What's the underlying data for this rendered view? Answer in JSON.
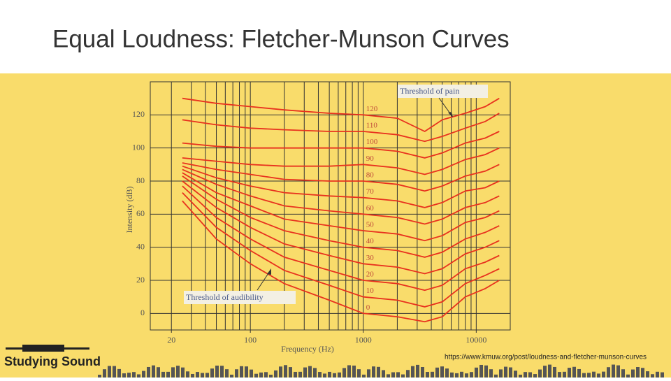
{
  "slide": {
    "title": "Equal Loudness: Fletcher-Munson Curves",
    "source": "https://www.kmuw.org/post/loudness-and-fletcher-munson-curves",
    "logo": "Studying Sound"
  },
  "chart_data": {
    "type": "line",
    "xlabel": "Frequency (Hz)",
    "ylabel": "Intensity (dB)",
    "xscale": "log",
    "xlim": [
      13,
      20000
    ],
    "ylim": [
      -10,
      140
    ],
    "xticks": [
      20,
      100,
      1000,
      10000
    ],
    "yticks": [
      0,
      20,
      40,
      60,
      80,
      100,
      120
    ],
    "xgrid": [
      20,
      30,
      40,
      50,
      60,
      70,
      80,
      90,
      100,
      200,
      300,
      400,
      500,
      600,
      700,
      800,
      900,
      1000,
      2000,
      3000,
      4000,
      5000,
      6000,
      7000,
      8000,
      9000,
      10000
    ],
    "grid": true,
    "annotations": [
      "Threshold of pain",
      "Threshold of audibility"
    ],
    "x": [
      25,
      50,
      100,
      200,
      500,
      1000,
      2000,
      3500,
      5000,
      8000,
      12000,
      16000
    ],
    "series": [
      {
        "name": "120",
        "color": "#e8321e",
        "values": [
          130,
          127,
          125,
          123,
          121,
          120,
          118,
          110,
          117,
          121,
          125,
          130
        ]
      },
      {
        "name": "110",
        "color": "#e8321e",
        "values": [
          117,
          114,
          112,
          111,
          110,
          110,
          108,
          104,
          107,
          112,
          116,
          121
        ]
      },
      {
        "name": "100",
        "color": "#e8321e",
        "values": [
          103,
          101,
          100,
          100,
          100,
          100,
          98,
          94,
          97,
          103,
          106,
          110
        ]
      },
      {
        "name": "90",
        "color": "#e8321e",
        "values": [
          94,
          92,
          90,
          89,
          89,
          90,
          88,
          84,
          87,
          93,
          96,
          100
        ]
      },
      {
        "name": "80",
        "color": "#e8321e",
        "values": [
          91,
          87,
          84,
          81,
          80,
          80,
          78,
          74,
          77,
          83,
          86,
          90
        ]
      },
      {
        "name": "70",
        "color": "#e8321e",
        "values": [
          89,
          82,
          77,
          73,
          71,
          70,
          68,
          64,
          67,
          74,
          76,
          80
        ]
      },
      {
        "name": "60",
        "color": "#e8321e",
        "values": [
          87,
          78,
          71,
          65,
          62,
          60,
          58,
          54,
          57,
          64,
          67,
          71
        ]
      },
      {
        "name": "50",
        "color": "#e8321e",
        "values": [
          85,
          73,
          65,
          57,
          53,
          50,
          48,
          44,
          47,
          55,
          58,
          62
        ]
      },
      {
        "name": "40",
        "color": "#e8321e",
        "values": [
          83,
          69,
          58,
          50,
          44,
          40,
          38,
          34,
          37,
          45,
          49,
          53
        ]
      },
      {
        "name": "30",
        "color": "#e8321e",
        "values": [
          80,
          64,
          52,
          42,
          35,
          30,
          28,
          24,
          27,
          36,
          40,
          44
        ]
      },
      {
        "name": "20",
        "color": "#e8321e",
        "values": [
          77,
          58,
          45,
          34,
          26,
          20,
          18,
          14,
          17,
          27,
          31,
          35
        ]
      },
      {
        "name": "10",
        "color": "#e8321e",
        "values": [
          73,
          52,
          38,
          26,
          17,
          10,
          8,
          4,
          7,
          18,
          23,
          27
        ]
      },
      {
        "name": "0",
        "color": "#e8321e",
        "values": [
          68,
          45,
          30,
          18,
          8,
          0,
          -2,
          -5,
          -2,
          10,
          15,
          20
        ]
      }
    ]
  }
}
